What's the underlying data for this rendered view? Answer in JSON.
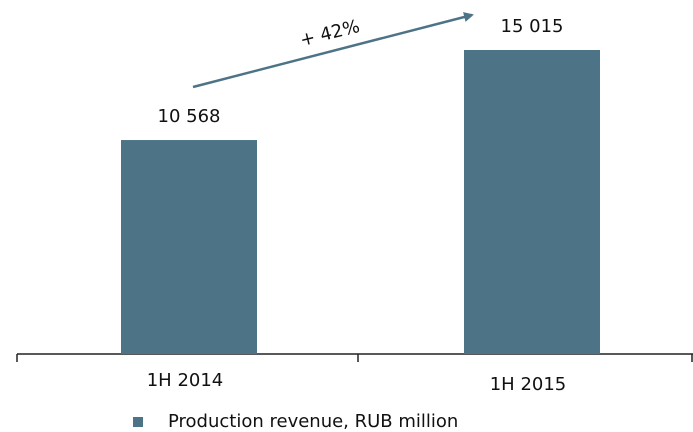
{
  "chart_data": {
    "type": "bar",
    "categories": [
      "1H 2014",
      "1H 2015"
    ],
    "series": [
      {
        "name": "Production revenue, RUB million",
        "color": "#4d7387",
        "values": [
          10568,
          15015
        ],
        "value_labels": [
          "10 568",
          "15 015"
        ]
      }
    ],
    "annotation": "+ 42%"
  }
}
